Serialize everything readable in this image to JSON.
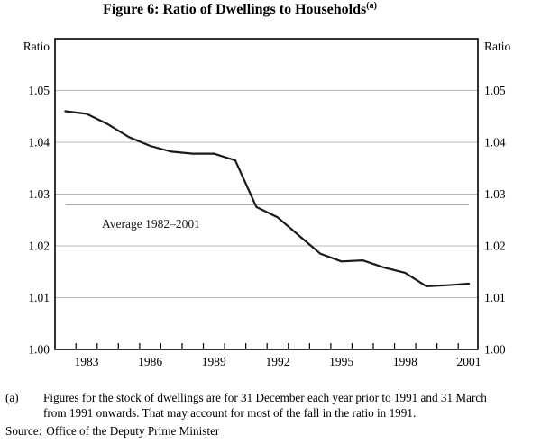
{
  "title": {
    "text": "Figure 6: Ratio of Dwellings to Households",
    "superscript": "(a)"
  },
  "chart_data": {
    "type": "line",
    "title": "Figure 6: Ratio of Dwellings to Households (a)",
    "ylabel_left": "Ratio",
    "ylabel_right": "Ratio",
    "ylim": [
      1.0,
      1.06
    ],
    "grid": true,
    "x": [
      1982,
      1983,
      1984,
      1985,
      1986,
      1987,
      1988,
      1989,
      1990,
      1991,
      1992,
      1993,
      1994,
      1995,
      1996,
      1997,
      1998,
      1999,
      2000,
      2001
    ],
    "series": [
      {
        "name": "Ratio of dwellings to households",
        "values": [
          1.046,
          1.0455,
          1.0435,
          1.041,
          1.0393,
          1.0382,
          1.0378,
          1.0378,
          1.0365,
          1.0275,
          1.0255,
          1.022,
          1.0185,
          1.017,
          1.0172,
          1.0158,
          1.0148,
          1.0122,
          1.0124,
          1.0127
        ]
      }
    ],
    "average_line": {
      "label": "Average 1982–2001",
      "value": 1.028,
      "x_start": 1982,
      "x_end": 2001
    },
    "yticks": [
      1.0,
      1.01,
      1.02,
      1.03,
      1.04,
      1.05
    ],
    "ytick_labels": [
      "1.00",
      "1.01",
      "1.02",
      "1.03",
      "1.04",
      "1.05"
    ],
    "gridline_values": [
      1.01,
      1.02,
      1.03,
      1.04,
      1.05
    ],
    "xtick_label_years": [
      1983,
      1986,
      1989,
      1992,
      1995,
      1998,
      2001
    ],
    "xtick_labels": [
      "1983",
      "1986",
      "1989",
      "1992",
      "1995",
      "1998",
      "2001"
    ],
    "colors": {
      "series_line": "#1a1a1a",
      "gridline": "#b9b9b9",
      "average_line": "#9c9c9c",
      "frame": "#000000"
    }
  },
  "footnote": {
    "marker": "(a)",
    "lines": [
      "Figures for the stock of dwellings are for 31 December each year prior to 1991 and 31 March",
      "from 1991 onwards. That may account for most of the fall in the ratio in 1991."
    ]
  },
  "source": {
    "label": "Source:",
    "text": "Office of the Deputy Prime Minister"
  }
}
